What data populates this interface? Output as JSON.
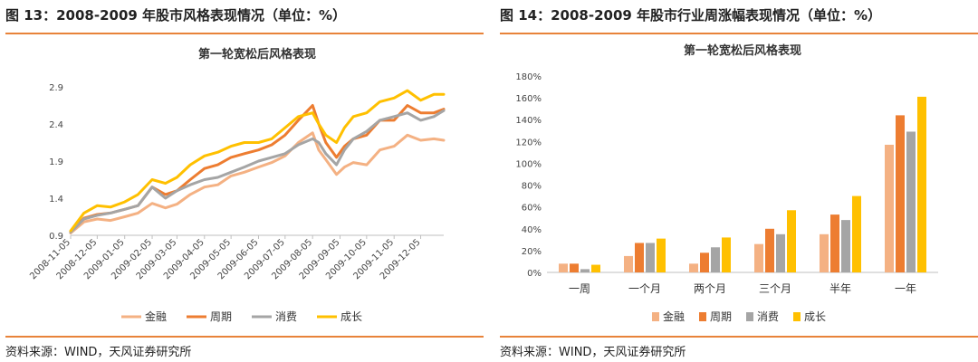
{
  "figures": [
    {
      "caption": "图 13：2008-2009 年股市风格表现情况（单位：%）",
      "source": "资料来源：WIND，天风证券研究所"
    },
    {
      "caption": "图 14：2008-2009 年股市行业周涨幅表现情况（单位：%）",
      "source": "资料来源：WIND，天风证券研究所"
    }
  ],
  "chart_data": [
    {
      "type": "line",
      "title": "第一轮宽松后风格表现",
      "xlabel": "",
      "ylabel": "",
      "ylim": [
        0.9,
        2.9
      ],
      "yticks": [
        "0.9",
        "1.4",
        "1.9",
        "2.4",
        "2.9"
      ],
      "xticks": [
        "2008-11-05",
        "2008-12-05",
        "2009-01-05",
        "2009-02-05",
        "2009-03-05",
        "2009-04-05",
        "2009-05-05",
        "2009-06-05",
        "2009-07-05",
        "2009-08-05",
        "2009-09-05",
        "2009-10-05",
        "2009-11-05",
        "2009-12-05"
      ],
      "x_range": [
        "2008-11-05",
        "2009-12-31"
      ],
      "x": [
        "2008-11-05",
        "2008-11-20",
        "2008-12-05",
        "2008-12-20",
        "2009-01-05",
        "2009-01-20",
        "2009-02-05",
        "2009-02-20",
        "2009-03-05",
        "2009-03-20",
        "2009-04-05",
        "2009-04-20",
        "2009-05-05",
        "2009-05-20",
        "2009-06-05",
        "2009-06-20",
        "2009-07-05",
        "2009-07-20",
        "2009-08-05",
        "2009-08-12",
        "2009-08-20",
        "2009-09-01",
        "2009-09-10",
        "2009-09-20",
        "2009-10-05",
        "2009-10-20",
        "2009-11-05",
        "2009-11-20",
        "2009-12-05",
        "2009-12-20",
        "2009-12-31"
      ],
      "series": [
        {
          "name": "金融",
          "color": "#F4B183",
          "values": [
            0.93,
            1.08,
            1.12,
            1.1,
            1.15,
            1.2,
            1.33,
            1.27,
            1.32,
            1.45,
            1.55,
            1.58,
            1.7,
            1.75,
            1.82,
            1.88,
            1.97,
            2.15,
            2.28,
            2.05,
            1.92,
            1.72,
            1.82,
            1.88,
            1.85,
            2.05,
            2.1,
            2.25,
            2.18,
            2.2,
            2.18
          ]
        },
        {
          "name": "周期",
          "color": "#ED7D31",
          "values": [
            0.95,
            1.13,
            1.18,
            1.2,
            1.25,
            1.3,
            1.55,
            1.45,
            1.5,
            1.65,
            1.8,
            1.85,
            1.95,
            2.0,
            2.05,
            2.12,
            2.25,
            2.45,
            2.65,
            2.4,
            2.15,
            1.95,
            2.1,
            2.2,
            2.25,
            2.45,
            2.45,
            2.65,
            2.55,
            2.55,
            2.6
          ]
        },
        {
          "name": "消费",
          "color": "#A5A5A5",
          "values": [
            0.94,
            1.12,
            1.17,
            1.2,
            1.25,
            1.3,
            1.55,
            1.4,
            1.5,
            1.58,
            1.65,
            1.68,
            1.75,
            1.82,
            1.9,
            1.95,
            2.0,
            2.12,
            2.2,
            2.15,
            2.0,
            1.85,
            2.05,
            2.2,
            2.3,
            2.45,
            2.5,
            2.55,
            2.45,
            2.5,
            2.58
          ]
        },
        {
          "name": "成长",
          "color": "#FFC000",
          "values": [
            0.96,
            1.2,
            1.3,
            1.28,
            1.35,
            1.45,
            1.65,
            1.6,
            1.68,
            1.85,
            1.97,
            2.02,
            2.1,
            2.15,
            2.15,
            2.2,
            2.35,
            2.5,
            2.55,
            2.4,
            2.25,
            2.15,
            2.35,
            2.5,
            2.55,
            2.7,
            2.75,
            2.85,
            2.72,
            2.8,
            2.8
          ]
        }
      ],
      "legend": "bottom",
      "grid": false
    },
    {
      "type": "bar",
      "title": "第一轮宽松后风格表现",
      "categories": [
        "一周",
        "一个月",
        "两个月",
        "三个月",
        "半年",
        "一年"
      ],
      "ylim": [
        0,
        180
      ],
      "yticks": [
        "0%",
        "20%",
        "40%",
        "60%",
        "80%",
        "100%",
        "120%",
        "140%",
        "160%",
        "180%"
      ],
      "series": [
        {
          "name": "金融",
          "color": "#F4B183",
          "values": [
            8,
            15,
            8,
            26,
            35,
            117
          ]
        },
        {
          "name": "周期",
          "color": "#ED7D31",
          "values": [
            8,
            27,
            18,
            40,
            53,
            144
          ]
        },
        {
          "name": "消费",
          "color": "#A5A5A5",
          "values": [
            3,
            27,
            23,
            35,
            48,
            129
          ]
        },
        {
          "name": "成长",
          "color": "#FFC000",
          "values": [
            7,
            31,
            32,
            57,
            70,
            161
          ]
        }
      ],
      "legend": "bottom",
      "grid": false
    }
  ]
}
